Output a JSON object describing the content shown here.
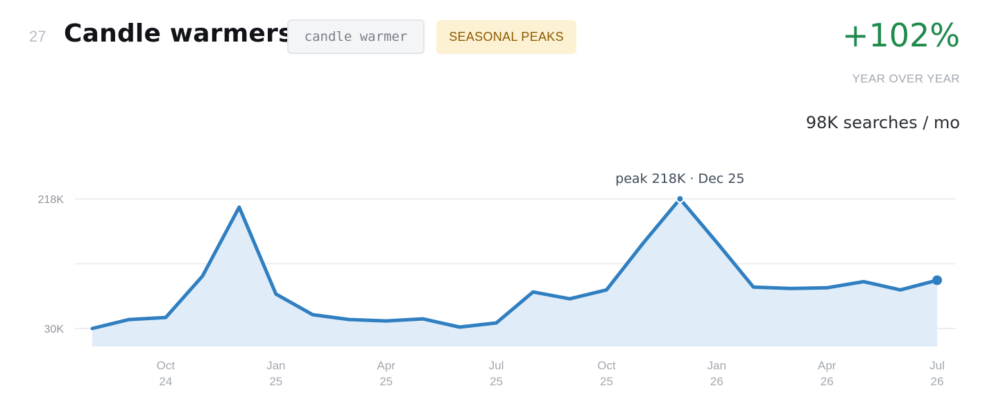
{
  "header": {
    "rank": "27",
    "title": "Candle warmers",
    "keyword": "candle warmer",
    "tag": "SEASONAL PEAKS"
  },
  "stats": {
    "growth": "+102%",
    "growth_label": "YEAR OVER YEAR",
    "volume": "98K searches / mo"
  },
  "colors": {
    "line": "#2f7fc1",
    "area": "#e0ecf7",
    "growth": "#1f8a4c",
    "tag_bg": "#fdf1d4",
    "tag_text": "#8a5b00"
  },
  "chart_data": {
    "type": "area",
    "title": "",
    "xlabel": "",
    "ylabel": "",
    "x": [
      "2024-08",
      "2024-09",
      "2024-10",
      "2024-11",
      "2024-12",
      "2025-01",
      "2025-02",
      "2025-03",
      "2025-04",
      "2025-05",
      "2025-06",
      "2025-07",
      "2025-08",
      "2025-09",
      "2025-10",
      "2025-11",
      "2025-12",
      "2026-01",
      "2026-02",
      "2026-03",
      "2026-04",
      "2026-05",
      "2026-06",
      "2026-07"
    ],
    "series": [
      {
        "values": [
          30,
          43,
          46,
          106,
          206,
          80,
          50,
          43,
          41,
          44,
          32,
          38,
          83,
          73,
          86,
          154,
          218,
          155,
          90,
          88,
          89,
          98,
          86,
          100
        ]
      }
    ],
    "ylim": [
      30,
      218
    ],
    "y_ticks": [
      {
        "value": 218,
        "label": "218K"
      },
      {
        "value": 30,
        "label": "30K"
      }
    ],
    "x_ticks": [
      {
        "x": "2024-10",
        "month": "Oct",
        "year": "24"
      },
      {
        "x": "2025-01",
        "month": "Jan",
        "year": "25"
      },
      {
        "x": "2025-04",
        "month": "Apr",
        "year": "25"
      },
      {
        "x": "2025-07",
        "month": "Jul",
        "year": "25"
      },
      {
        "x": "2025-10",
        "month": "Oct",
        "year": "25"
      },
      {
        "x": "2026-01",
        "month": "Jan",
        "year": "26"
      },
      {
        "x": "2026-04",
        "month": "Apr",
        "year": "26"
      },
      {
        "x": "2026-07",
        "month": "Jul",
        "year": "26"
      }
    ],
    "grid": true,
    "annotation": {
      "x": "2025-12",
      "text": "peak 218K · Dec 25"
    }
  }
}
